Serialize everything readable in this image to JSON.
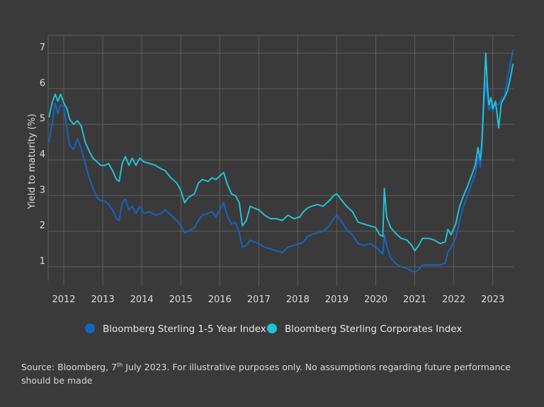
{
  "chart_data": {
    "type": "line",
    "ylabel": "Yield to maturity (%)",
    "xlabel": "",
    "yticks": [
      1,
      2,
      3,
      4,
      5,
      6,
      7
    ],
    "xticks": [
      "2012",
      "2013",
      "2014",
      "2015",
      "2016",
      "2017",
      "2018",
      "2019",
      "2020",
      "2021",
      "2022",
      "2023"
    ],
    "xlim": [
      2011.6,
      2023.55
    ],
    "ylim": [
      0.6,
      7.5
    ],
    "grid": true,
    "legend_position": "bottom",
    "series": [
      {
        "name": "Bloomberg Sterling 1-5 Year Index",
        "color": "#1565c0",
        "points": [
          [
            2011.62,
            4.5
          ],
          [
            2011.7,
            5.0
          ],
          [
            2011.78,
            5.6
          ],
          [
            2011.85,
            5.3
          ],
          [
            2011.92,
            5.55
          ],
          [
            2012.0,
            5.5
          ],
          [
            2012.08,
            4.9
          ],
          [
            2012.15,
            4.4
          ],
          [
            2012.25,
            4.3
          ],
          [
            2012.35,
            4.6
          ],
          [
            2012.45,
            4.3
          ],
          [
            2012.55,
            3.9
          ],
          [
            2012.65,
            3.5
          ],
          [
            2012.75,
            3.2
          ],
          [
            2012.85,
            2.95
          ],
          [
            2012.95,
            2.85
          ],
          [
            2013.05,
            2.85
          ],
          [
            2013.15,
            2.75
          ],
          [
            2013.25,
            2.6
          ],
          [
            2013.35,
            2.35
          ],
          [
            2013.42,
            2.3
          ],
          [
            2013.5,
            2.8
          ],
          [
            2013.58,
            2.9
          ],
          [
            2013.67,
            2.6
          ],
          [
            2013.75,
            2.7
          ],
          [
            2013.85,
            2.5
          ],
          [
            2013.95,
            2.7
          ],
          [
            2014.05,
            2.5
          ],
          [
            2014.2,
            2.55
          ],
          [
            2014.35,
            2.45
          ],
          [
            2014.5,
            2.5
          ],
          [
            2014.6,
            2.6
          ],
          [
            2014.75,
            2.45
          ],
          [
            2014.9,
            2.3
          ],
          [
            2015.0,
            2.15
          ],
          [
            2015.1,
            1.95
          ],
          [
            2015.2,
            2.0
          ],
          [
            2015.35,
            2.1
          ],
          [
            2015.45,
            2.3
          ],
          [
            2015.55,
            2.45
          ],
          [
            2015.7,
            2.5
          ],
          [
            2015.8,
            2.55
          ],
          [
            2015.9,
            2.4
          ],
          [
            2016.0,
            2.6
          ],
          [
            2016.1,
            2.8
          ],
          [
            2016.2,
            2.4
          ],
          [
            2016.3,
            2.2
          ],
          [
            2016.4,
            2.25
          ],
          [
            2016.5,
            1.95
          ],
          [
            2016.58,
            1.55
          ],
          [
            2016.68,
            1.6
          ],
          [
            2016.78,
            1.75
          ],
          [
            2016.88,
            1.7
          ],
          [
            2017.0,
            1.65
          ],
          [
            2017.15,
            1.55
          ],
          [
            2017.3,
            1.5
          ],
          [
            2017.45,
            1.45
          ],
          [
            2017.6,
            1.4
          ],
          [
            2017.75,
            1.55
          ],
          [
            2017.9,
            1.6
          ],
          [
            2018.05,
            1.65
          ],
          [
            2018.15,
            1.7
          ],
          [
            2018.25,
            1.85
          ],
          [
            2018.35,
            1.9
          ],
          [
            2018.5,
            1.95
          ],
          [
            2018.65,
            2.0
          ],
          [
            2018.8,
            2.15
          ],
          [
            2018.92,
            2.35
          ],
          [
            2019.0,
            2.45
          ],
          [
            2019.1,
            2.3
          ],
          [
            2019.25,
            2.05
          ],
          [
            2019.4,
            1.9
          ],
          [
            2019.55,
            1.65
          ],
          [
            2019.7,
            1.6
          ],
          [
            2019.85,
            1.65
          ],
          [
            2020.0,
            1.55
          ],
          [
            2020.1,
            1.45
          ],
          [
            2020.18,
            1.35
          ],
          [
            2020.22,
            1.9
          ],
          [
            2020.28,
            1.6
          ],
          [
            2020.38,
            1.25
          ],
          [
            2020.5,
            1.1
          ],
          [
            2020.65,
            1.0
          ],
          [
            2020.8,
            0.95
          ],
          [
            2020.92,
            0.88
          ],
          [
            2021.0,
            0.85
          ],
          [
            2021.1,
            0.92
          ],
          [
            2021.2,
            1.05
          ],
          [
            2021.35,
            1.05
          ],
          [
            2021.5,
            1.05
          ],
          [
            2021.65,
            1.05
          ],
          [
            2021.78,
            1.1
          ],
          [
            2021.85,
            1.4
          ],
          [
            2021.93,
            1.55
          ],
          [
            2022.05,
            1.8
          ],
          [
            2022.15,
            2.3
          ],
          [
            2022.25,
            2.7
          ],
          [
            2022.35,
            3.0
          ],
          [
            2022.45,
            3.3
          ],
          [
            2022.55,
            3.6
          ],
          [
            2022.62,
            4.1
          ],
          [
            2022.68,
            3.8
          ],
          [
            2022.72,
            4.3
          ],
          [
            2022.77,
            5.5
          ],
          [
            2022.82,
            6.2
          ],
          [
            2022.86,
            5.8
          ],
          [
            2022.9,
            5.4
          ],
          [
            2022.95,
            5.55
          ],
          [
            2023.0,
            5.35
          ],
          [
            2023.07,
            5.6
          ],
          [
            2023.15,
            5.55
          ],
          [
            2023.22,
            5.7
          ],
          [
            2023.3,
            5.8
          ],
          [
            2023.38,
            6.3
          ],
          [
            2023.45,
            6.7
          ],
          [
            2023.52,
            7.1
          ]
        ]
      },
      {
        "name": "Bloomberg Sterling Corporates Index",
        "color": "#22c1d6",
        "points": [
          [
            2011.62,
            5.2
          ],
          [
            2011.7,
            5.6
          ],
          [
            2011.78,
            5.85
          ],
          [
            2011.85,
            5.65
          ],
          [
            2011.92,
            5.85
          ],
          [
            2012.0,
            5.6
          ],
          [
            2012.08,
            5.45
          ],
          [
            2012.15,
            5.15
          ],
          [
            2012.25,
            5.0
          ],
          [
            2012.35,
            5.1
          ],
          [
            2012.45,
            4.95
          ],
          [
            2012.55,
            4.5
          ],
          [
            2012.65,
            4.25
          ],
          [
            2012.75,
            4.05
          ],
          [
            2012.85,
            3.95
          ],
          [
            2012.95,
            3.85
          ],
          [
            2013.05,
            3.85
          ],
          [
            2013.15,
            3.9
          ],
          [
            2013.25,
            3.7
          ],
          [
            2013.35,
            3.45
          ],
          [
            2013.42,
            3.4
          ],
          [
            2013.5,
            3.9
          ],
          [
            2013.58,
            4.1
          ],
          [
            2013.67,
            3.85
          ],
          [
            2013.75,
            4.05
          ],
          [
            2013.85,
            3.85
          ],
          [
            2013.95,
            4.05
          ],
          [
            2014.05,
            3.95
          ],
          [
            2014.2,
            3.9
          ],
          [
            2014.35,
            3.85
          ],
          [
            2014.5,
            3.75
          ],
          [
            2014.6,
            3.7
          ],
          [
            2014.75,
            3.5
          ],
          [
            2014.9,
            3.35
          ],
          [
            2015.0,
            3.15
          ],
          [
            2015.1,
            2.8
          ],
          [
            2015.2,
            2.95
          ],
          [
            2015.35,
            3.05
          ],
          [
            2015.45,
            3.35
          ],
          [
            2015.55,
            3.45
          ],
          [
            2015.7,
            3.4
          ],
          [
            2015.8,
            3.5
          ],
          [
            2015.9,
            3.45
          ],
          [
            2016.0,
            3.55
          ],
          [
            2016.1,
            3.65
          ],
          [
            2016.2,
            3.3
          ],
          [
            2016.3,
            3.05
          ],
          [
            2016.4,
            3.0
          ],
          [
            2016.5,
            2.8
          ],
          [
            2016.58,
            2.15
          ],
          [
            2016.68,
            2.3
          ],
          [
            2016.78,
            2.7
          ],
          [
            2016.88,
            2.65
          ],
          [
            2017.0,
            2.6
          ],
          [
            2017.15,
            2.45
          ],
          [
            2017.3,
            2.35
          ],
          [
            2017.45,
            2.35
          ],
          [
            2017.6,
            2.3
          ],
          [
            2017.75,
            2.45
          ],
          [
            2017.9,
            2.35
          ],
          [
            2018.05,
            2.4
          ],
          [
            2018.15,
            2.55
          ],
          [
            2018.25,
            2.65
          ],
          [
            2018.35,
            2.7
          ],
          [
            2018.5,
            2.75
          ],
          [
            2018.65,
            2.7
          ],
          [
            2018.8,
            2.85
          ],
          [
            2018.92,
            3.0
          ],
          [
            2019.0,
            3.05
          ],
          [
            2019.1,
            2.9
          ],
          [
            2019.25,
            2.7
          ],
          [
            2019.4,
            2.55
          ],
          [
            2019.55,
            2.25
          ],
          [
            2019.7,
            2.2
          ],
          [
            2019.85,
            2.15
          ],
          [
            2020.0,
            2.1
          ],
          [
            2020.1,
            1.9
          ],
          [
            2020.18,
            1.85
          ],
          [
            2020.22,
            3.2
          ],
          [
            2020.28,
            2.4
          ],
          [
            2020.38,
            2.1
          ],
          [
            2020.5,
            1.95
          ],
          [
            2020.65,
            1.8
          ],
          [
            2020.8,
            1.75
          ],
          [
            2020.92,
            1.6
          ],
          [
            2021.0,
            1.45
          ],
          [
            2021.1,
            1.6
          ],
          [
            2021.2,
            1.8
          ],
          [
            2021.35,
            1.8
          ],
          [
            2021.5,
            1.75
          ],
          [
            2021.65,
            1.65
          ],
          [
            2021.78,
            1.7
          ],
          [
            2021.85,
            2.05
          ],
          [
            2021.93,
            1.9
          ],
          [
            2022.05,
            2.2
          ],
          [
            2022.15,
            2.7
          ],
          [
            2022.25,
            3.0
          ],
          [
            2022.35,
            3.25
          ],
          [
            2022.45,
            3.55
          ],
          [
            2022.55,
            3.85
          ],
          [
            2022.62,
            4.35
          ],
          [
            2022.68,
            4.0
          ],
          [
            2022.72,
            4.5
          ],
          [
            2022.77,
            5.8
          ],
          [
            2022.82,
            7.0
          ],
          [
            2022.86,
            6.1
          ],
          [
            2022.9,
            5.55
          ],
          [
            2022.95,
            5.75
          ],
          [
            2023.0,
            5.45
          ],
          [
            2023.07,
            5.65
          ],
          [
            2023.15,
            4.9
          ],
          [
            2023.22,
            5.6
          ],
          [
            2023.3,
            5.75
          ],
          [
            2023.38,
            5.95
          ],
          [
            2023.45,
            6.3
          ],
          [
            2023.52,
            6.7
          ]
        ]
      }
    ]
  },
  "source_text": {
    "prefix": "Source: Bloomberg, 7",
    "sup": "th",
    "suffix": " July 2023. For illustrative purposes only. No assumptions regarding future performance should be made"
  },
  "colors": {
    "background": "#3a3a3a",
    "grid": "#5e5e5e"
  }
}
